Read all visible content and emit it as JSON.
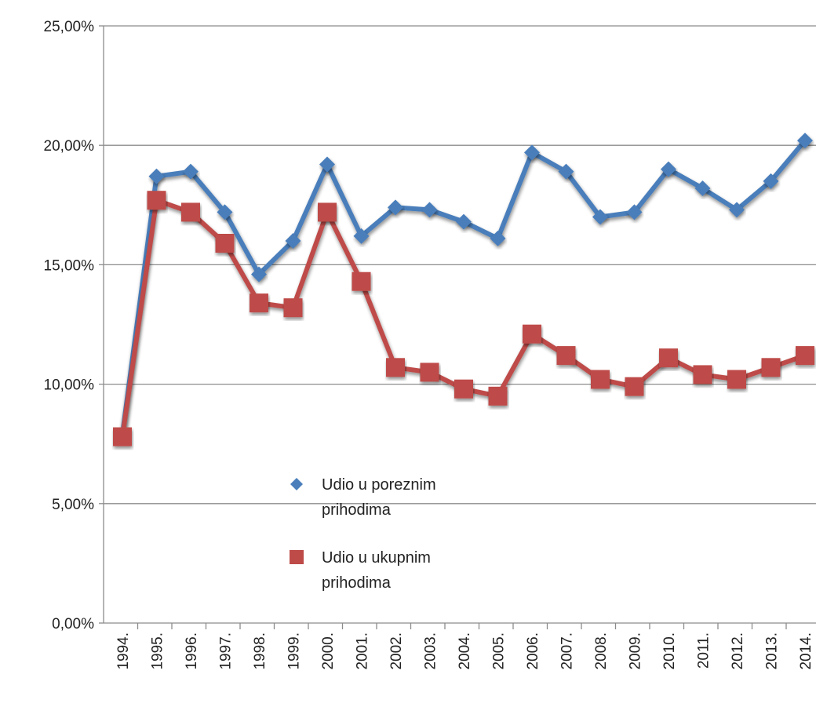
{
  "chart_data": {
    "type": "line",
    "categories": [
      "1994.",
      "1995.",
      "1996.",
      "1997.",
      "1998.",
      "1999.",
      "2000.",
      "2001.",
      "2002.",
      "2003.",
      "2004.",
      "2005.",
      "2006.",
      "2007.",
      "2008.",
      "2009.",
      "2010.",
      "2011.",
      "2012.",
      "2013.",
      "2014."
    ],
    "series": [
      {
        "name": "Udio u poreznim prihodima",
        "color": "#4a7ebb",
        "marker": "diamond",
        "values": [
          7.9,
          18.7,
          18.9,
          17.2,
          14.6,
          16.0,
          19.2,
          16.2,
          17.4,
          17.3,
          16.8,
          16.1,
          19.7,
          18.9,
          17.0,
          17.2,
          19.0,
          18.2,
          17.3,
          18.5,
          20.2
        ]
      },
      {
        "name": "Udio u ukupnim prihodima",
        "color": "#be4b48",
        "marker": "square",
        "values": [
          7.8,
          17.7,
          17.2,
          15.9,
          13.4,
          13.2,
          17.2,
          14.3,
          10.7,
          10.5,
          9.8,
          9.5,
          12.1,
          11.2,
          10.2,
          9.9,
          11.1,
          10.4,
          10.2,
          10.7,
          11.2
        ]
      }
    ],
    "ylim": [
      0,
      25
    ],
    "yticks": [
      "0,00%",
      "5,00%",
      "10,00%",
      "15,00%",
      "20,00%",
      "25,00%"
    ],
    "legend": {
      "position": "center-left",
      "entries": [
        {
          "line1": "Udio u poreznim",
          "line2": "prihodima"
        },
        {
          "line1": "Udio u ukupnim",
          "line2": "prihodima"
        }
      ]
    },
    "grid": true
  }
}
